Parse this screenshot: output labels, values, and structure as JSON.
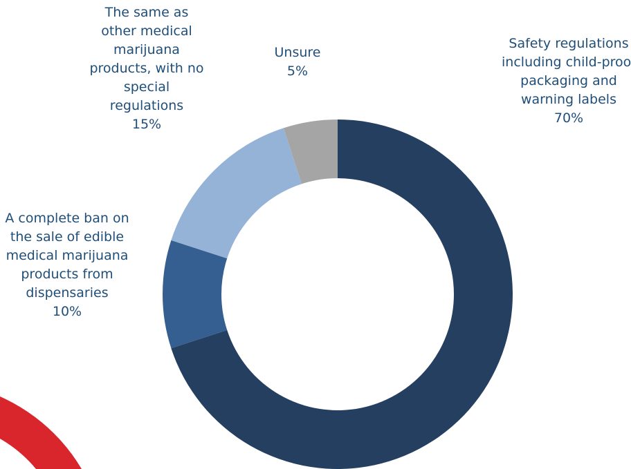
{
  "chart_data": {
    "type": "donut",
    "categories": [
      "Safety regulations including child-proof packaging and warning labels",
      "A complete ban on the sale of edible medical marijuana products from dispensaries",
      "The same as other medical marijuana products, with no special regulations",
      "Unsure"
    ],
    "values": [
      70,
      10,
      15,
      5
    ],
    "value_labels": [
      "70%",
      "10%",
      "15%",
      "5%"
    ],
    "colors": [
      "#253f60",
      "#355f91",
      "#95b3d7",
      "#a5a5a5"
    ]
  }
}
